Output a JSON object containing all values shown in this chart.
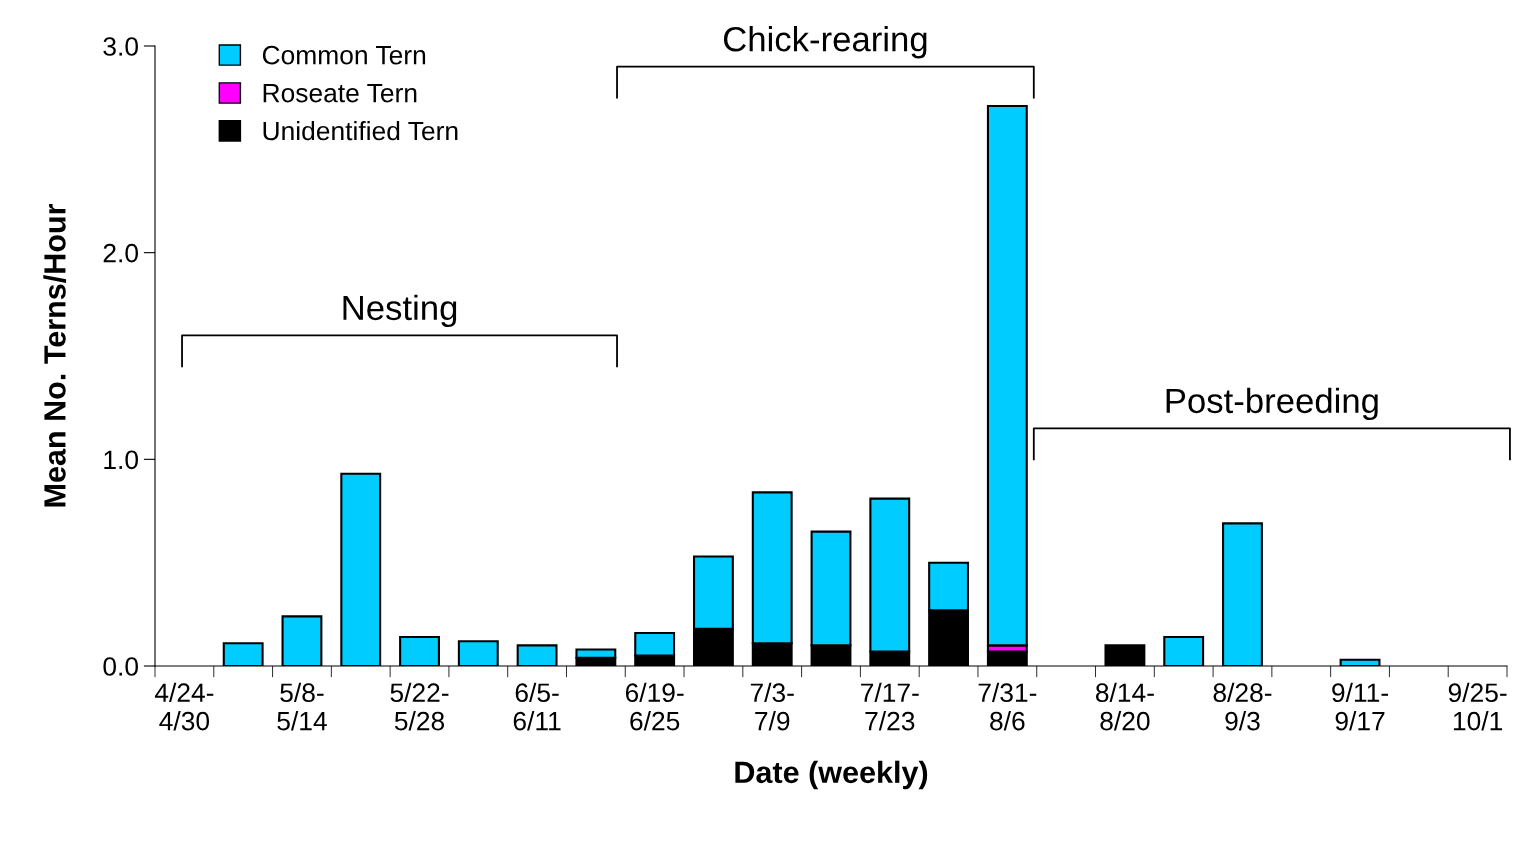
{
  "chart_data": {
    "type": "bar",
    "stacked": true,
    "xlabel": "Date (weekly)",
    "ylabel": "Mean No. Terns/Hour",
    "categories": [
      "4/24-\n4/30",
      null,
      "5/8-\n5/14",
      null,
      "5/22-\n5/28",
      null,
      "6/5-\n6/11",
      null,
      "6/19-\n6/25",
      null,
      "7/3-\n7/9",
      null,
      "7/17-\n7/23",
      null,
      "7/31-\n8/6",
      null,
      "8/14-\n8/20",
      null,
      "8/28-\n9/3",
      null,
      "9/11-\n9/17",
      null,
      "9/25-\n10/1"
    ],
    "series": [
      {
        "name": "Unidentified Tern",
        "color": "#000000",
        "values": [
          0,
          0,
          0,
          0,
          0,
          0,
          0,
          0.04,
          0.05,
          0.18,
          0.11,
          0.1,
          0.07,
          0.27,
          0.07,
          0,
          0.1,
          0,
          0,
          0,
          0,
          0,
          0
        ]
      },
      {
        "name": "Roseate Tern",
        "color": "#ff00ff",
        "values": [
          0,
          0,
          0,
          0,
          0,
          0,
          0,
          0,
          0,
          0,
          0,
          0,
          0,
          0,
          0.03,
          0,
          0,
          0,
          0,
          0,
          0,
          0,
          0
        ]
      },
      {
        "name": "Common Tern",
        "color": "#00ccff",
        "values": [
          0,
          0.11,
          0.24,
          0.93,
          0.14,
          0.12,
          0.1,
          0.04,
          0.11,
          0.35,
          0.73,
          0.55,
          0.74,
          0.23,
          2.61,
          0,
          0,
          0.14,
          0.69,
          0,
          0.03,
          0,
          0
        ]
      }
    ],
    "ylim": [
      0,
      3.0
    ],
    "yticks": [
      {
        "value": 0,
        "label": "0.0"
      },
      {
        "value": 1,
        "label": "1.0"
      },
      {
        "value": 2,
        "label": "2.0"
      },
      {
        "value": 3,
        "label": "3.0"
      }
    ],
    "grid": false,
    "legend": "top left",
    "annotations": [
      "Nesting",
      "Chick-rearing",
      "Post-breeding"
    ]
  }
}
